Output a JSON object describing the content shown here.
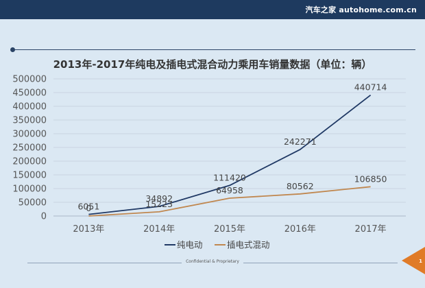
{
  "header": {
    "brand": "汽车之家 autohome.com.cn"
  },
  "footer": {
    "text": "Confidential & Proprietary",
    "page_number": "1"
  },
  "colors": {
    "header_bg": "#1e3a5f",
    "accent": "#e07b27",
    "series1": "#1f3864",
    "series2": "#c0874f"
  },
  "chart_data": {
    "type": "line",
    "title": "2013年-2017年纯电及插电式混合动力乘用车销量数据（单位：辆）",
    "categories": [
      "2013年",
      "2014年",
      "2015年",
      "2016年",
      "2017年"
    ],
    "ylim": [
      0,
      500000
    ],
    "yticks": [
      "0",
      "50000",
      "100000",
      "150000",
      "200000",
      "250000",
      "300000",
      "350000",
      "400000",
      "450000",
      "500000"
    ],
    "grid": true,
    "legend": "bottom",
    "series": [
      {
        "name": "纯电动",
        "values": [
          6051,
          34892,
          111420,
          242271,
          440714
        ],
        "labels": [
          "6051",
          "34892",
          "111420",
          "242271",
          "440714"
        ]
      },
      {
        "name": "插电式混动",
        "values": [
          0,
          15223,
          64958,
          80562,
          106850
        ],
        "labels": [
          "0",
          "15223",
          "64958",
          "80562",
          "106850"
        ]
      }
    ]
  }
}
